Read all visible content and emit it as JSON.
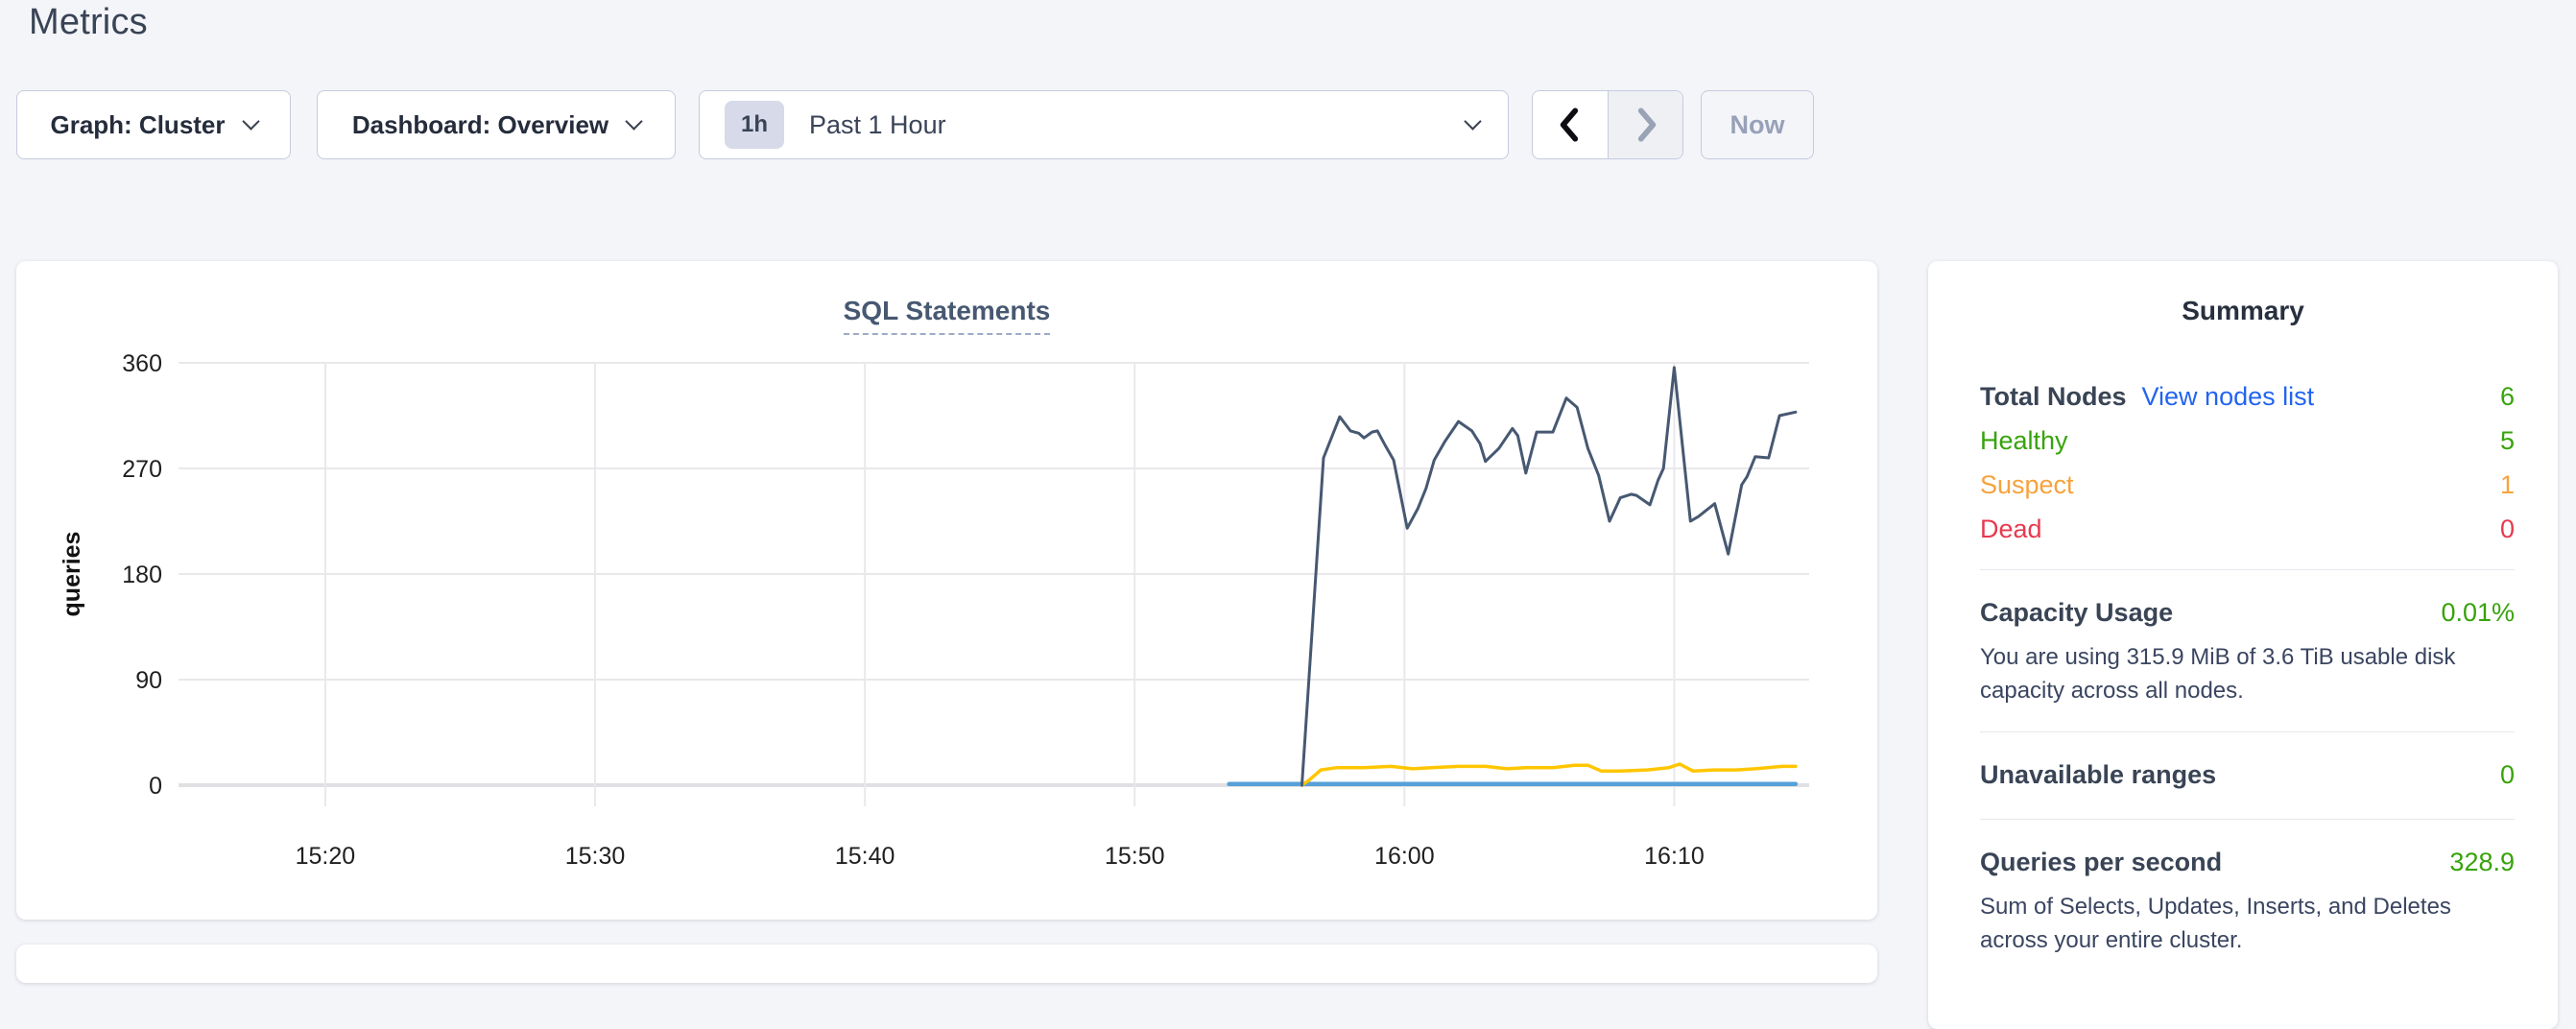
{
  "page": {
    "title": "Metrics"
  },
  "toolbar": {
    "graph_dropdown": {
      "label": "Graph: Cluster"
    },
    "dashboard_dropdown": {
      "label": "Dashboard: Overview"
    },
    "time_picker": {
      "badge": "1h",
      "label": "Past 1 Hour"
    },
    "prev_button": {
      "icon": "chevron-left-icon",
      "enabled": true
    },
    "next_button": {
      "icon": "chevron-right-icon",
      "enabled": false
    },
    "now_button": {
      "label": "Now",
      "enabled": false
    }
  },
  "chart_data": {
    "type": "line",
    "title": "SQL Statements",
    "xlabel": "",
    "ylabel": "queries",
    "grid": true,
    "legend_position": "none",
    "ylim": [
      0,
      360
    ],
    "y_ticks": [
      0,
      90,
      180,
      270,
      360
    ],
    "x_unit": "minutes_after_15:00",
    "xlim": [
      14.56,
      75
    ],
    "x_ticks": [
      {
        "t": 20,
        "label": "15:20"
      },
      {
        "t": 30,
        "label": "15:30"
      },
      {
        "t": 40,
        "label": "15:40"
      },
      {
        "t": 50,
        "label": "15:50"
      },
      {
        "t": 60,
        "label": "16:00"
      },
      {
        "t": 70,
        "label": "16:10"
      }
    ],
    "series": [
      {
        "name": "blue-baseline",
        "color": "#57a0d8",
        "width": 4.5,
        "points": [
          [
            53.5,
            1
          ],
          [
            74.5,
            1
          ]
        ]
      },
      {
        "name": "yellow-line",
        "color": "#ffc600",
        "width": 3.5,
        "points": [
          [
            56.2,
            0
          ],
          [
            56.5,
            5
          ],
          [
            56.9,
            13
          ],
          [
            57.5,
            15
          ],
          [
            58.5,
            15
          ],
          [
            59.5,
            16
          ],
          [
            60.3,
            14
          ],
          [
            61,
            15
          ],
          [
            62,
            16
          ],
          [
            63,
            16
          ],
          [
            63.8,
            14
          ],
          [
            64.5,
            15
          ],
          [
            65.5,
            15
          ],
          [
            66.3,
            17
          ],
          [
            66.8,
            17
          ],
          [
            67.3,
            12
          ],
          [
            68,
            12
          ],
          [
            69,
            13
          ],
          [
            69.8,
            15
          ],
          [
            70.2,
            18
          ],
          [
            70.7,
            12
          ],
          [
            71.5,
            13
          ],
          [
            72.3,
            13
          ],
          [
            73,
            14
          ],
          [
            74,
            16
          ],
          [
            74.5,
            16
          ]
        ]
      },
      {
        "name": "navy-line",
        "color": "#475872",
        "width": 3,
        "points": [
          [
            56.2,
            0
          ],
          [
            56.6,
            140
          ],
          [
            57.0,
            279
          ],
          [
            57.6,
            314
          ],
          [
            58.0,
            302
          ],
          [
            58.3,
            300
          ],
          [
            58.5,
            296
          ],
          [
            58.8,
            301
          ],
          [
            59.0,
            302
          ],
          [
            59.3,
            289
          ],
          [
            59.6,
            277
          ],
          [
            60.1,
            219
          ],
          [
            60.5,
            236
          ],
          [
            60.8,
            253
          ],
          [
            61.1,
            277
          ],
          [
            61.5,
            293
          ],
          [
            62.0,
            310
          ],
          [
            62.5,
            302
          ],
          [
            62.8,
            291
          ],
          [
            63.0,
            276
          ],
          [
            63.5,
            287
          ],
          [
            64.0,
            304
          ],
          [
            64.2,
            298
          ],
          [
            64.5,
            266
          ],
          [
            64.9,
            301
          ],
          [
            65.5,
            301
          ],
          [
            66.0,
            330
          ],
          [
            66.4,
            322
          ],
          [
            66.8,
            287
          ],
          [
            67.2,
            264
          ],
          [
            67.6,
            225
          ],
          [
            68.0,
            245
          ],
          [
            68.4,
            248
          ],
          [
            68.6,
            247
          ],
          [
            69.1,
            239
          ],
          [
            69.4,
            260
          ],
          [
            69.6,
            270
          ],
          [
            70.0,
            356
          ],
          [
            70.6,
            225
          ],
          [
            70.9,
            229
          ],
          [
            71.5,
            240
          ],
          [
            72.0,
            197
          ],
          [
            72.5,
            256
          ],
          [
            72.7,
            263
          ],
          [
            73.0,
            280
          ],
          [
            73.5,
            279
          ],
          [
            73.9,
            315
          ],
          [
            74.5,
            318
          ]
        ]
      }
    ]
  },
  "summary": {
    "title": "Summary",
    "total_nodes": {
      "label": "Total Nodes",
      "link": "View nodes list",
      "value": "6"
    },
    "healthy": {
      "label": "Healthy",
      "value": "5"
    },
    "suspect": {
      "label": "Suspect",
      "value": "1"
    },
    "dead": {
      "label": "Dead",
      "value": "0"
    },
    "capacity": {
      "label": "Capacity Usage",
      "value": "0.01%",
      "description": "You are using 315.9 MiB of 3.6 TiB usable disk capacity across all nodes."
    },
    "unavailable_ranges": {
      "label": "Unavailable ranges",
      "value": "0"
    },
    "queries_per_second": {
      "label": "Queries per second",
      "value": "328.9",
      "description": "Sum of Selects, Updates, Inserts, and Deletes across your entire cluster."
    }
  },
  "theme": {
    "page-bg": "#f4f5f9",
    "heading": "#394455",
    "chart-title": "#475872",
    "green": "#37a30b",
    "orange": "#f7a23c",
    "red": "#e8384f",
    "link-blue": "#2264f1",
    "series-navy": "#475872",
    "series-yellow": "#ffc600",
    "series-blue": "#57a0d8",
    "gridline": "#e9e9ec",
    "axis-line": "#e1e1e4",
    "tick-text": "#1f1f1f"
  }
}
